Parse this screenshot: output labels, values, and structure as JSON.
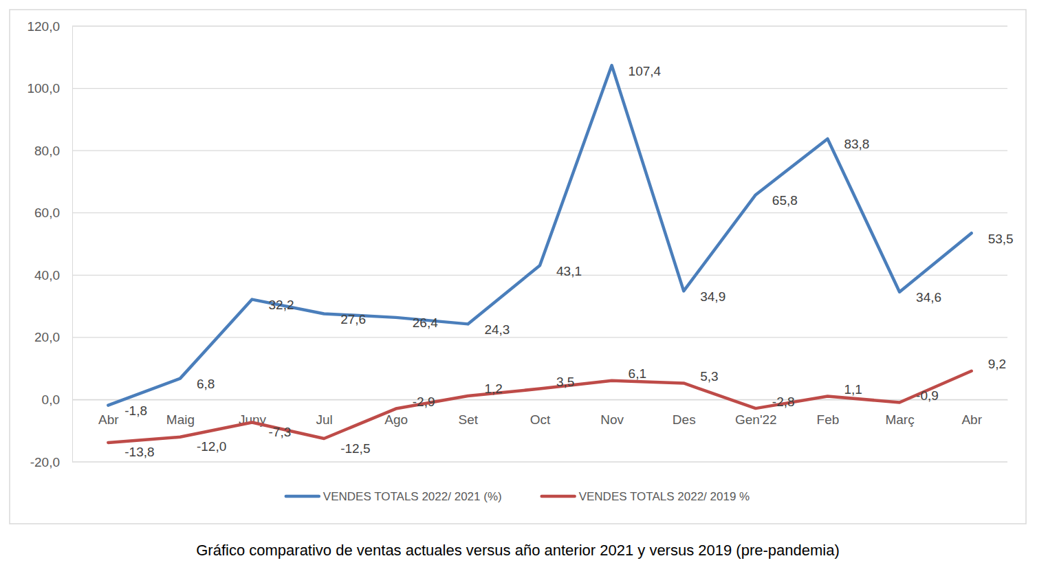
{
  "chart_data": {
    "type": "line",
    "title": "Gráfico comparativo de ventas actuales versus año anterior 2021 y versus 2019 (pre-pandemia)",
    "categories": [
      "Abr",
      "Maig",
      "Juny",
      "Jul",
      "Ago",
      "Set",
      "Oct",
      "Nov",
      "Des",
      "Gen'22",
      "Feb",
      "Març",
      "Abr"
    ],
    "series": [
      {
        "name": "VENDES TOTALS 2022/ 2021 (%)",
        "color": "#4a7ebb",
        "values": [
          -1.8,
          6.8,
          32.2,
          27.6,
          26.4,
          24.3,
          43.1,
          107.4,
          34.9,
          65.8,
          83.8,
          34.6,
          53.5
        ],
        "value_labels": [
          "-1,8",
          "6,8",
          "32,2",
          "27,6",
          "26,4",
          "24,3",
          "43,1",
          "107,4",
          "34,9",
          "65,8",
          "83,8",
          "34,6",
          "53,5"
        ]
      },
      {
        "name": "VENDES TOTALS 2022/ 2019 %",
        "color": "#be4b48",
        "values": [
          -13.8,
          -12.0,
          -7.3,
          -12.5,
          -2.9,
          1.2,
          3.5,
          6.1,
          5.3,
          -2.8,
          1.1,
          -0.9,
          9.2
        ],
        "value_labels": [
          "-13,8",
          "-12,0",
          "-7,3",
          "-12,5",
          "-2,9",
          "1,2",
          "3,5",
          "6,1",
          "5,3",
          "-2,8",
          "1,1",
          "-0,9",
          "9,2"
        ]
      }
    ],
    "ylim": [
      -20,
      120
    ],
    "yticks": [
      {
        "value": -20,
        "label": "-20,0"
      },
      {
        "value": 0,
        "label": "0,0"
      },
      {
        "value": 20,
        "label": "20,0"
      },
      {
        "value": 40,
        "label": "40,0"
      },
      {
        "value": 60,
        "label": "60,0"
      },
      {
        "value": 80,
        "label": "80,0"
      },
      {
        "value": 100,
        "label": "100,0"
      },
      {
        "value": 120,
        "label": "120,0"
      }
    ],
    "grid": true,
    "legend": "bottom",
    "data_labels": true
  }
}
